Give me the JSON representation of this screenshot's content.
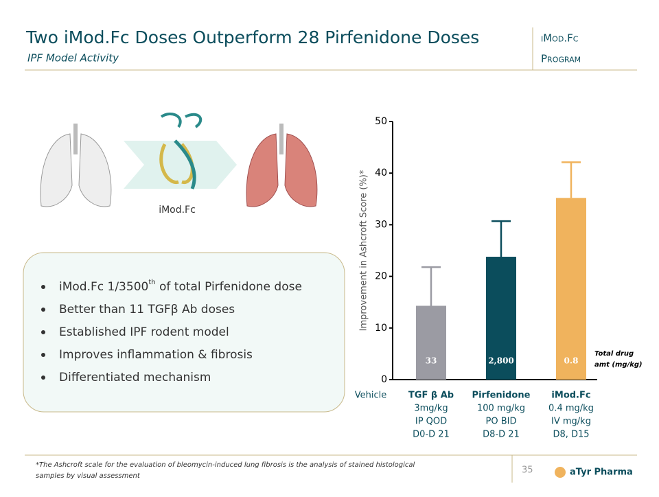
{
  "header": {
    "title": "Two iMod.Fc Doses Outperform 28 Pirfenidone Doses",
    "subtitle": "IPF Model Activity",
    "program": [
      "iMod.Fc",
      "Program"
    ]
  },
  "image_caption": "iMod.Fc",
  "bullets": [
    [
      "iMod.Fc 1/3500",
      "th",
      " of total Pirfenidone dose"
    ],
    [
      "Better than 11 TGFβ Ab doses"
    ],
    [
      "Established IPF rodent model"
    ],
    [
      "Improves inflammation & fibrosis"
    ],
    [
      "Differentiated mechanism"
    ]
  ],
  "chart_data": {
    "type": "bar",
    "y_label": "Improvement in Ashcroft Score (%)*",
    "categories": [
      "Vehicle",
      "TGF β Ab",
      "Pirfenidone",
      "iMod.Fc"
    ],
    "category_details": [
      [],
      [
        "3mg/kg",
        "IP QOD",
        "D0-D 21"
      ],
      [
        "100 mg/kg",
        "PO BID",
        "D8-D 21"
      ],
      [
        "0.4 mg/kg",
        "IV mg/kg",
        "D8, D15"
      ]
    ],
    "values": [
      0,
      14.3,
      23.8,
      35.2
    ],
    "errors": [
      null,
      7.5,
      6.9,
      6.9
    ],
    "colors": [
      "#9b9ba3",
      "#9b9ba3",
      "#0b4d5c",
      "#f0b35d"
    ],
    "drug_amounts": [
      null,
      33,
      {
        "value": 2800,
        "label": "2,800"
      },
      0.8
    ],
    "drug_amount_label": [
      "Total drug",
      "amt (mg/kg)"
    ],
    "ylim": [
      0,
      50
    ],
    "yticks": [
      0,
      10,
      20,
      30,
      40,
      50
    ]
  },
  "footnote": [
    "*The Ashcroft scale for the evaluation of bleomycin-induced lung fibrosis is the analysis of stained histological",
    "samples by visual assessment"
  ],
  "page_number": 35,
  "logo": "aTyr Pharma"
}
